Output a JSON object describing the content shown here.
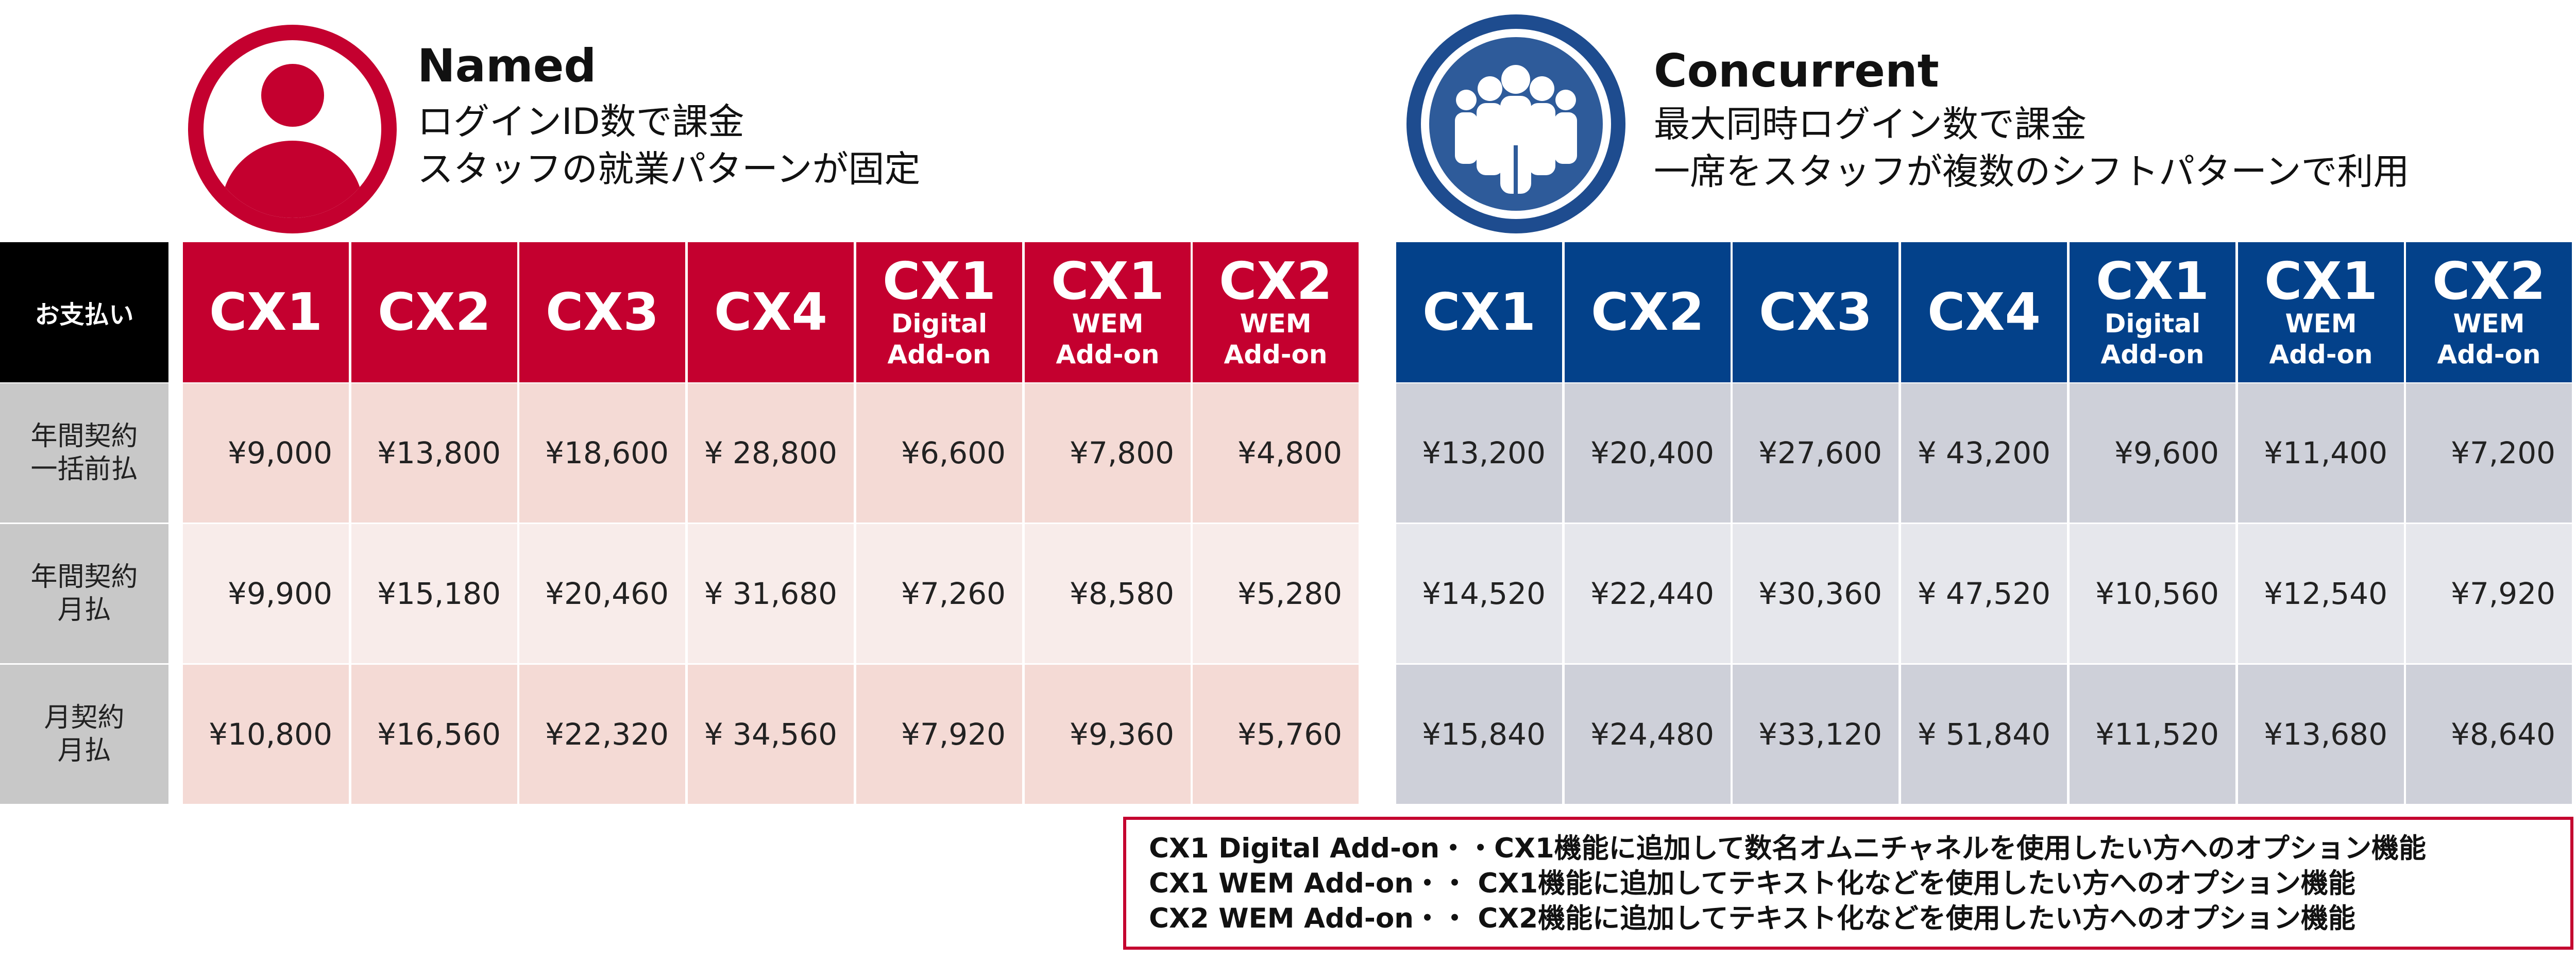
{
  "named": {
    "title": "Named",
    "lines": [
      "ログインID数で課金",
      "スタッフの就業パターンが固定"
    ],
    "icon": "person-icon",
    "color": "#C4002F"
  },
  "concurrent": {
    "title": "Concurrent",
    "lines": [
      "最大同時ログイン数で課金",
      "一席をスタッフが複数のシフトパターンで利用"
    ],
    "icon": "group-people-icon",
    "color": "#03418A"
  },
  "payment_label": "お支払い",
  "columns": [
    {
      "main": "CX1",
      "sub": []
    },
    {
      "main": "CX2",
      "sub": []
    },
    {
      "main": "CX3",
      "sub": []
    },
    {
      "main": "CX4",
      "sub": []
    },
    {
      "main": "CX1",
      "sub": [
        "Digital",
        "Add-on"
      ]
    },
    {
      "main": "CX1",
      "sub": [
        "WEM",
        "Add-on"
      ]
    },
    {
      "main": "CX2",
      "sub": [
        "WEM",
        "Add-on"
      ]
    }
  ],
  "rows": [
    {
      "label": "年間契約\n一括前払",
      "named": [
        "¥9,000",
        "¥13,800",
        "¥18,600",
        "¥ 28,800",
        "¥6,600",
        "¥7,800",
        "¥4,800"
      ],
      "concurrent": [
        "¥13,200",
        "¥20,400",
        "¥27,600",
        "¥ 43,200",
        "¥9,600",
        "¥11,400",
        "¥7,200"
      ]
    },
    {
      "label": "年間契約\n月払",
      "named": [
        "¥9,900",
        "¥15,180",
        "¥20,460",
        "¥ 31,680",
        "¥7,260",
        "¥8,580",
        "¥5,280"
      ],
      "concurrent": [
        "¥14,520",
        "¥22,440",
        "¥30,360",
        "¥ 47,520",
        "¥10,560",
        "¥12,540",
        "¥7,920"
      ]
    },
    {
      "label": "月契約\n月払",
      "named": [
        "¥10,800",
        "¥16,560",
        "¥22,320",
        "¥ 34,560",
        "¥7,920",
        "¥9,360",
        "¥5,760"
      ],
      "concurrent": [
        "¥15,840",
        "¥24,480",
        "¥33,120",
        "¥ 51,840",
        "¥11,520",
        "¥13,680",
        "¥8,640"
      ]
    }
  ],
  "notes": [
    "CX1 Digital Add-on・・CX1機能に追加して数名オムニチャネルを使用したい方へのオプション機能",
    "CX1 WEM Add-on・・ CX1機能に追加してテキスト化などを使用したい方へのオプション機能",
    "CX2 WEM Add-on・・ CX2機能に追加してテキスト化などを使用したい方へのオプション機能"
  ]
}
